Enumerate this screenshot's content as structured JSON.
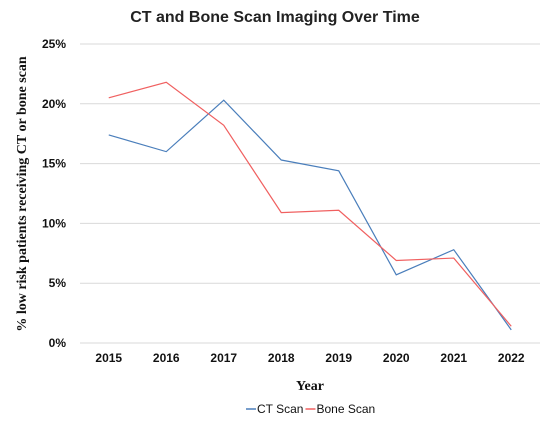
{
  "chart_data": {
    "type": "line",
    "title": "CT and Bone Scan Imaging Over Time",
    "xlabel": "Year",
    "ylabel": "% low risk  patients receiving CT or bone scan",
    "categories": [
      "2015",
      "2016",
      "2017",
      "2018",
      "2019",
      "2020",
      "2021",
      "2022"
    ],
    "yticks": [
      "0%",
      "5%",
      "10%",
      "15%",
      "20%",
      "25%"
    ],
    "ylim": [
      0,
      25
    ],
    "grid": true,
    "legend_position": "bottom",
    "series": [
      {
        "name": "CT Scan",
        "color": "#4a7ebb",
        "values": [
          17.4,
          16.0,
          20.3,
          15.3,
          14.4,
          5.7,
          7.8,
          1.1
        ]
      },
      {
        "name": "Bone Scan",
        "color": "#f06060",
        "values": [
          20.5,
          21.8,
          18.2,
          10.9,
          11.1,
          6.9,
          7.1,
          1.4
        ]
      }
    ]
  }
}
